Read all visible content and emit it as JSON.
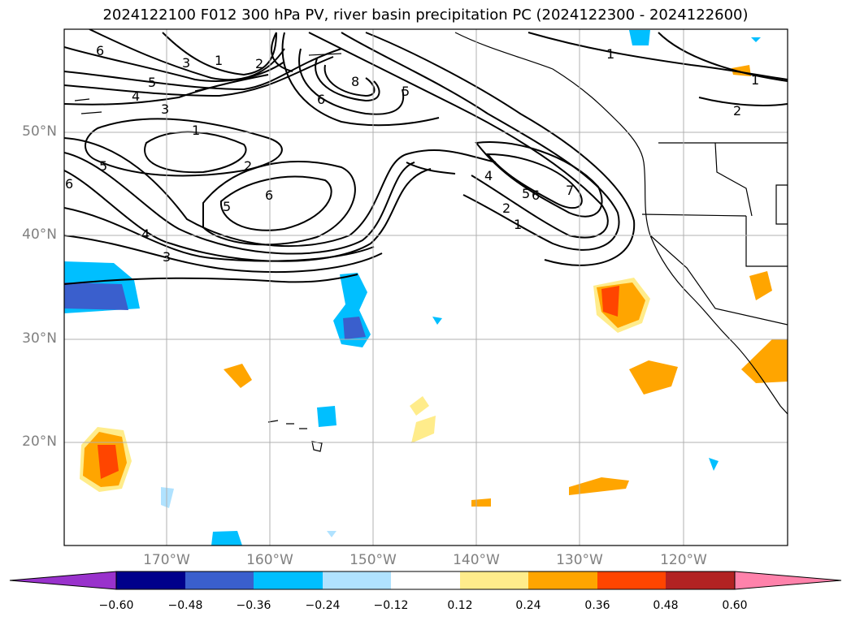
{
  "title": "2024122100 F012 300 hPa PV, river basin precipitation PC (2024122300 - 2024122600)",
  "map": {
    "lat_labels": [
      "50°N",
      "40°N",
      "30°N",
      "20°N"
    ],
    "lon_labels": [
      "170°W",
      "160°W",
      "150°W",
      "140°W",
      "130°W",
      "120°W"
    ],
    "gridline_color": "#b0b0b0",
    "coast_color": "#000000"
  },
  "pv_contour_labels": [
    "1",
    "2",
    "3",
    "4",
    "5",
    "6",
    "7",
    "8"
  ],
  "colorbar": {
    "ticks": [
      "−0.60",
      "−0.48",
      "−0.36",
      "−0.24",
      "−0.12",
      "0.12",
      "0.24",
      "0.36",
      "0.48",
      "0.60"
    ],
    "colors": [
      "#9932cc",
      "#00008b",
      "#3a5fcd",
      "#00bfff",
      "#b0e2ff",
      "#ffffff",
      "#ffec8b",
      "#ffa500",
      "#ff4500",
      "#b22222",
      "#ff82ab"
    ]
  }
}
